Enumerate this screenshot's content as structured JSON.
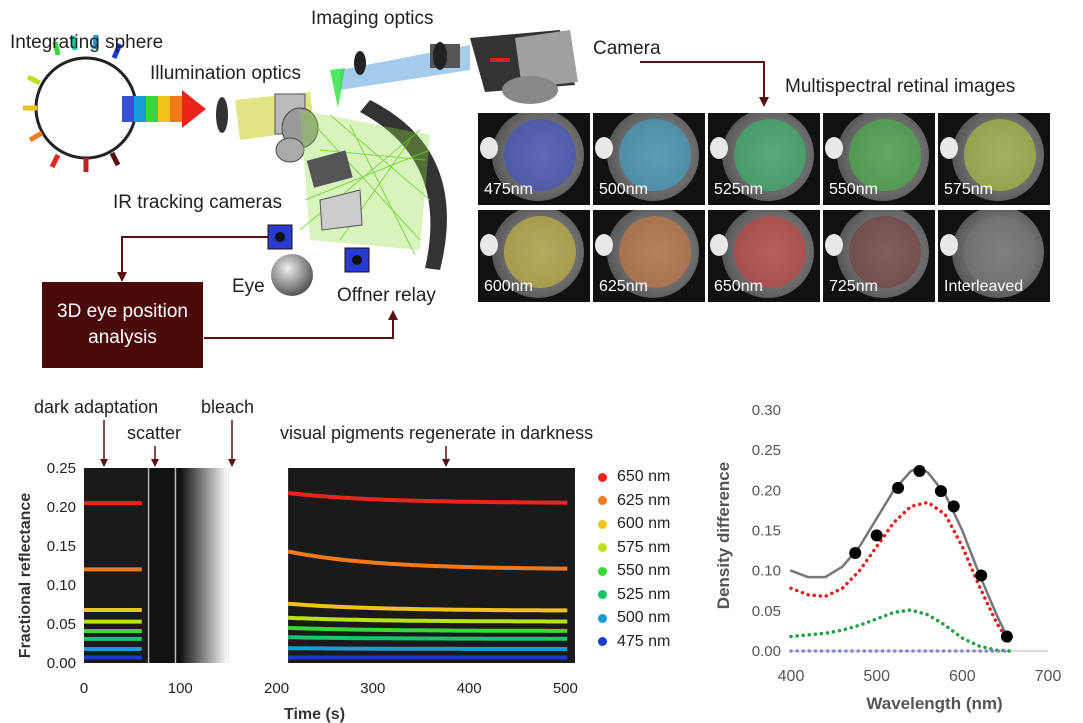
{
  "diagram": {
    "labels": {
      "integrating_sphere": "Integrating sphere",
      "imaging_optics": "Imaging optics",
      "illumination_optics": "Illumination optics",
      "camera": "Camera",
      "multispectral": "Multispectral retinal images",
      "ir_tracking": "IR tracking cameras",
      "eye": "Eye",
      "offner": "Offner relay",
      "analysis": "3D eye position analysis"
    },
    "panels": [
      {
        "label": "475nm",
        "color": "#3a4fd8"
      },
      {
        "label": "500nm",
        "color": "#3aa9d8"
      },
      {
        "label": "525nm",
        "color": "#2fc26b"
      },
      {
        "label": "550nm",
        "color": "#3fbf3f"
      },
      {
        "label": "575nm",
        "color": "#b7d23a"
      },
      {
        "label": "600nm",
        "color": "#d8c23a"
      },
      {
        "label": "625nm",
        "color": "#d8783a"
      },
      {
        "label": "650nm",
        "color": "#d83a3a"
      },
      {
        "label": "725nm",
        "color": "#7a3a3a"
      },
      {
        "label": "Interleaved",
        "color": "#777777"
      }
    ]
  },
  "annotations": {
    "dark_adaptation": "dark adaptation",
    "scatter": "scatter",
    "bleach": "bleach",
    "regenerate": "visual pigments regenerate in darkness"
  },
  "chart_data": [
    {
      "type": "line",
      "xlabel": "Time (s)",
      "ylabel": "Fractional reflectance",
      "xlim": [
        0,
        510
      ],
      "ylim": [
        0,
        0.25
      ],
      "xticks": [
        "0",
        "100",
        "200",
        "300",
        "400",
        "500"
      ],
      "yticks": [
        "0.00",
        "0.05",
        "0.10",
        "0.15",
        "0.20",
        "0.25"
      ],
      "gaps": [
        [
          65,
          212
        ]
      ],
      "series": [
        {
          "name": "650 nm",
          "color": "#e8261c",
          "pre": 0.205,
          "post_start": 0.218,
          "post_end": 0.205
        },
        {
          "name": "625 nm",
          "color": "#f07a1c",
          "pre": 0.12,
          "post_start": 0.143,
          "post_end": 0.12
        },
        {
          "name": "600 nm",
          "color": "#f2c21c",
          "pre": 0.068,
          "post_start": 0.076,
          "post_end": 0.067
        },
        {
          "name": "575 nm",
          "color": "#b8e21c",
          "pre": 0.053,
          "post_start": 0.058,
          "post_end": 0.053
        },
        {
          "name": "550 nm",
          "color": "#3ad63a",
          "pre": 0.041,
          "post_start": 0.045,
          "post_end": 0.041
        },
        {
          "name": "525 nm",
          "color": "#1ac46a",
          "pre": 0.031,
          "post_start": 0.033,
          "post_end": 0.031
        },
        {
          "name": "500 nm",
          "color": "#1a9ad6",
          "pre": 0.018,
          "post_start": 0.019,
          "post_end": 0.018
        },
        {
          "name": "475 nm",
          "color": "#1a3ad6",
          "pre": 0.007,
          "post_start": 0.007,
          "post_end": 0.007
        }
      ]
    },
    {
      "type": "scatter",
      "xlabel": "Wavelength (nm)",
      "ylabel": "Density difference",
      "xlim": [
        400,
        700
      ],
      "ylim": [
        0,
        0.3
      ],
      "xticks": [
        "400",
        "500",
        "600",
        "700"
      ],
      "yticks": [
        "0.00",
        "0.05",
        "0.10",
        "0.15",
        "0.20",
        "0.25",
        "0.30"
      ],
      "points": {
        "x": [
          475,
          500,
          525,
          550,
          575,
          590,
          622,
          652
        ],
        "y": [
          0.122,
          0.144,
          0.203,
          0.224,
          0.199,
          0.18,
          0.094,
          0.018
        ]
      },
      "curves": [
        {
          "color": "#777777",
          "style": "solid",
          "x": [
            400,
            420,
            440,
            460,
            480,
            500,
            520,
            540,
            550,
            560,
            580,
            600,
            620,
            640,
            655
          ],
          "y": [
            0.1,
            0.092,
            0.092,
            0.105,
            0.13,
            0.165,
            0.2,
            0.224,
            0.228,
            0.222,
            0.195,
            0.15,
            0.095,
            0.045,
            0.012
          ]
        },
        {
          "color": "#e02020",
          "style": "dotted",
          "x": [
            400,
            420,
            440,
            460,
            480,
            500,
            520,
            540,
            560,
            580,
            600,
            620,
            640,
            655
          ],
          "y": [
            0.078,
            0.07,
            0.068,
            0.078,
            0.1,
            0.13,
            0.16,
            0.18,
            0.185,
            0.17,
            0.13,
            0.08,
            0.035,
            0.01
          ]
        },
        {
          "color": "#20a040",
          "style": "dotted",
          "x": [
            400,
            420,
            440,
            460,
            480,
            500,
            520,
            540,
            560,
            580,
            600,
            620,
            640,
            655
          ],
          "y": [
            0.018,
            0.02,
            0.022,
            0.026,
            0.032,
            0.04,
            0.048,
            0.051,
            0.045,
            0.032,
            0.016,
            0.006,
            0.001,
            0.0
          ]
        },
        {
          "color": "#8888cc",
          "style": "dotted",
          "x": [
            400,
            500,
            600,
            655
          ],
          "y": [
            0.0,
            0.0,
            0.0,
            0.0
          ]
        }
      ]
    }
  ]
}
